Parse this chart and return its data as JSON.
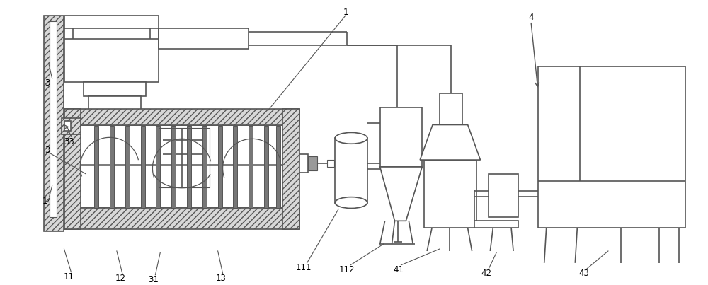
{
  "bg": "white",
  "lc": "#555555",
  "lw": 1.2,
  "hatch_fc": "#d8d8d8",
  "hatch_pat": "////",
  "label_fs": 8.5
}
